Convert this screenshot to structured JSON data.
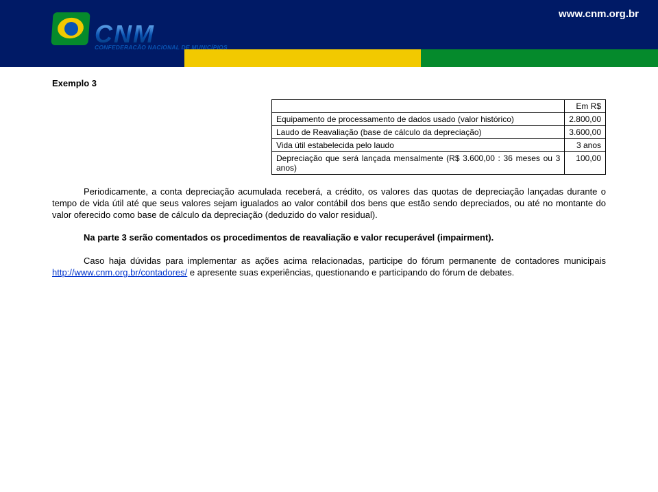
{
  "header": {
    "url": "www.cnm.org.br",
    "logo_main": "CNM",
    "logo_sub": "CONFEDERAÇÃO NACIONAL DE MUNICÍPIOS"
  },
  "title": "Exemplo 3",
  "table": {
    "currency_label": "Em R$",
    "rows": [
      {
        "label": "Equipamento de processamento de dados usado (valor histórico)",
        "value": "2.800,00"
      },
      {
        "label": "Laudo de Reavaliação (base de cálculo da depreciação)",
        "value": "3.600,00"
      },
      {
        "label": "Vida útil estabelecida pelo laudo",
        "value": "3 anos"
      },
      {
        "label": "Depreciação que será lançada mensalmente (R$ 3.600,00 : 36 meses ou 3 anos)",
        "value": "100,00"
      }
    ]
  },
  "paragraphs": {
    "p1": "Periodicamente, a conta depreciação acumulada receberá, a crédito, os valores das quotas de depreciação lançadas durante o tempo de vida útil até que seus valores sejam igualados ao valor contábil dos bens que estão sendo depreciados, ou até no montante do valor oferecido como base de cálculo da depreciação (deduzido do valor residual).",
    "p2": "Na parte 3 serão comentados os procedimentos de reavaliação e valor recuperável (impairment).",
    "p3a": "Caso haja dúvidas para implementar as ações acima relacionadas, participe do fórum permanente de contadores municipais ",
    "p3_link": "http://www.cnm.org.br/contadores/",
    "p3b": " e apresente suas experiências, questionando e participando do fórum de debates."
  }
}
